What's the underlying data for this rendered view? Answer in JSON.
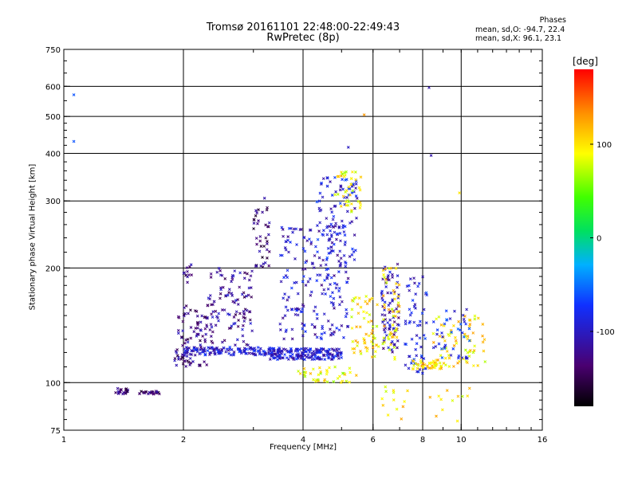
{
  "header": {
    "title_line1": "Tromsø 20161101 22:48:00-22:49:43",
    "title_line2": "RwPretec (8p)",
    "stats_title": "Phases",
    "stats_o": "mean, sd,O: -94.7, 22.4",
    "stats_x": "mean, sd,X:  96.1, 23.1"
  },
  "colorbar": {
    "unit": "[deg]",
    "range": [
      -180,
      180
    ],
    "ticks": [
      "100",
      "0",
      "-100"
    ],
    "tick_values": [
      100,
      0,
      -100
    ]
  },
  "chart_data": {
    "type": "scatter",
    "xlabel": "Frequency [MHz]",
    "ylabel": "Stationary phase Virtual Height [km]",
    "x_scale": "log",
    "y_scale": "log",
    "xlim": [
      1,
      16
    ],
    "ylim": [
      75,
      750
    ],
    "xticks": [
      "1",
      "2",
      "4",
      "6",
      "8",
      "10",
      "16"
    ],
    "xtick_values": [
      1,
      2,
      4,
      6,
      8,
      10,
      16
    ],
    "yticks": [
      "750",
      "600",
      "500",
      "400",
      "300",
      "200",
      "100",
      "75"
    ],
    "ytick_values": [
      750,
      600,
      500,
      400,
      300,
      200,
      100,
      75
    ],
    "grid_x": [
      2,
      4,
      6,
      8,
      10
    ],
    "grid_y": [
      600,
      500,
      400,
      300,
      200,
      100
    ],
    "marker": "x",
    "color_scale": "rainbow (phase, deg)",
    "clusters": [
      {
        "x_range": [
          1.35,
          1.45
        ],
        "y_range": [
          93,
          97
        ],
        "phase": -130,
        "n": 22
      },
      {
        "x_range": [
          1.55,
          1.75
        ],
        "y_range": [
          93,
          95
        ],
        "phase": -140,
        "n": 25
      },
      {
        "x_range": [
          1.9,
          2.3
        ],
        "y_range": [
          110,
          160
        ],
        "phase": -130,
        "n": 90
      },
      {
        "x_range": [
          2.0,
          2.1
        ],
        "y_range": [
          180,
          205
        ],
        "phase": -130,
        "n": 12
      },
      {
        "x_range": [
          2.0,
          3.5
        ],
        "y_range": [
          118,
          124
        ],
        "phase": -95,
        "n": 140
      },
      {
        "x_range": [
          2.3,
          3.0
        ],
        "y_range": [
          125,
          200
        ],
        "phase": -120,
        "n": 110
      },
      {
        "x_range": [
          3.0,
          3.3
        ],
        "y_range": [
          200,
          290
        ],
        "phase": -135,
        "n": 40
      },
      {
        "x_range": [
          3.3,
          5.0
        ],
        "y_range": [
          115,
          123
        ],
        "phase": -95,
        "n": 180
      },
      {
        "x_range": [
          3.5,
          5.2
        ],
        "y_range": [
          130,
          260
        ],
        "phase": -100,
        "n": 200
      },
      {
        "x_range": [
          4.3,
          5.5
        ],
        "y_range": [
          200,
          350
        ],
        "phase": -90,
        "n": 90
      },
      {
        "x_range": [
          4.8,
          5.6
        ],
        "y_range": [
          280,
          360
        ],
        "phase": 95,
        "n": 40
      },
      {
        "x_range": [
          3.8,
          5.5
        ],
        "y_range": [
          100,
          110
        ],
        "phase": 90,
        "n": 40
      },
      {
        "x_range": [
          5.3,
          6.2
        ],
        "y_range": [
          115,
          170
        ],
        "phase": 100,
        "n": 60
      },
      {
        "x_range": [
          6.3,
          7.0
        ],
        "y_range": [
          120,
          205
        ],
        "phase": -110,
        "n": 80
      },
      {
        "x_range": [
          6.3,
          7.0
        ],
        "y_range": [
          115,
          200
        ],
        "phase": 100,
        "n": 50
      },
      {
        "x_range": [
          7.2,
          8.2
        ],
        "y_range": [
          105,
          190
        ],
        "phase": -90,
        "n": 60
      },
      {
        "x_range": [
          7.5,
          9.0
        ],
        "y_range": [
          108,
          115
        ],
        "phase": 110,
        "n": 40
      },
      {
        "x_range": [
          8.5,
          11.5
        ],
        "y_range": [
          110,
          150
        ],
        "phase": 100,
        "n": 70
      },
      {
        "x_range": [
          8.5,
          10.5
        ],
        "y_range": [
          115,
          160
        ],
        "phase": -80,
        "n": 40
      },
      {
        "x_range": [
          6.3,
          10.5
        ],
        "y_range": [
          78,
          98
        ],
        "phase": 100,
        "n": 25
      }
    ],
    "outliers": [
      {
        "x": 1.06,
        "y": 570,
        "phase": -60
      },
      {
        "x": 1.06,
        "y": 430,
        "phase": -60
      },
      {
        "x": 5.7,
        "y": 505,
        "phase": 130
      },
      {
        "x": 5.2,
        "y": 415,
        "phase": -100
      },
      {
        "x": 8.3,
        "y": 595,
        "phase": -110
      },
      {
        "x": 8.4,
        "y": 395,
        "phase": -110
      },
      {
        "x": 9.9,
        "y": 315,
        "phase": 100
      },
      {
        "x": 3.2,
        "y": 305,
        "phase": -110
      }
    ]
  }
}
